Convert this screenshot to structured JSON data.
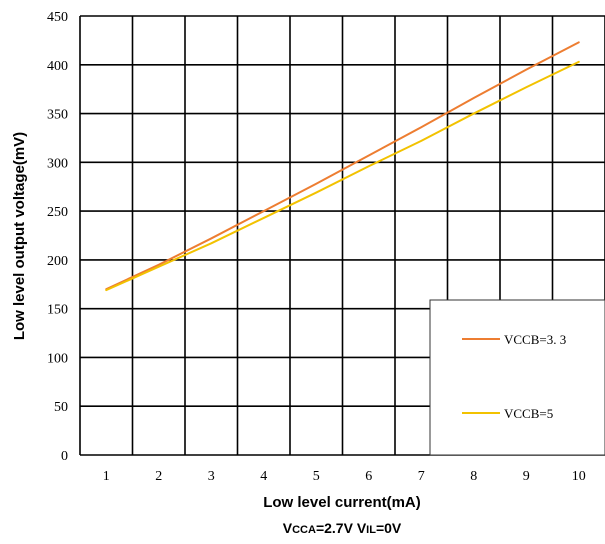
{
  "chart_data": {
    "type": "line",
    "xlabel": "Low level current(mA)",
    "ylabel": "Low level output voltage(mV)",
    "xlim": [
      1,
      10
    ],
    "ylim": [
      0,
      450
    ],
    "x_ticks": [
      1,
      2,
      3,
      4,
      5,
      6,
      7,
      8,
      9,
      10
    ],
    "y_ticks": [
      0,
      50,
      100,
      150,
      200,
      250,
      300,
      350,
      400,
      450
    ],
    "grid": true,
    "legend_position": "bottom-right",
    "x": [
      1,
      2,
      3,
      4,
      5,
      6,
      7,
      8,
      9,
      10
    ],
    "series": [
      {
        "name": "VCCB=3.3",
        "label": "VCCB=3. 3",
        "color": "#ED7D31",
        "values": [
          170,
          195,
          222,
          250,
          278,
          307,
          336,
          366,
          395,
          423
        ]
      },
      {
        "name": "VCCB=5",
        "label": "VCCB=5",
        "color": "#F2C200",
        "values": [
          169,
          193,
          217,
          243,
          269,
          296,
          322,
          350,
          377,
          403
        ]
      }
    ],
    "condition": {
      "v1": "V",
      "v1_sub": "CCA",
      "v1_rest": "=2.7V ",
      "v2": "V",
      "v2_sub": "IL",
      "v2_rest": "=0V"
    }
  }
}
